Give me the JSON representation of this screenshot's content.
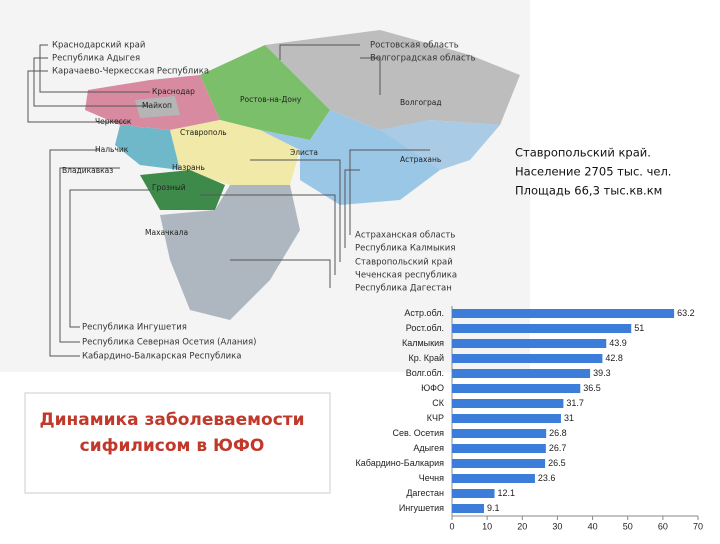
{
  "map": {
    "region_labels": [
      "Краснодарский край",
      "Республика Адыгея",
      "Карачаево-Черкесская Республика",
      "Ростовская область",
      "Волгоградская область",
      "Астраханская область",
      "Республика Калмыкия",
      "Ставропольский край",
      "Чеченская республика",
      "Республика Дагестан",
      "Республика Ингушетия",
      "Республика Северная Осетия (Алания)",
      "Кабардино-Балкарская Республика"
    ],
    "city_labels": [
      "Краснодар",
      "Майкоп",
      "Ростов-на-Дону",
      "Волгоград",
      "Черкесск",
      "Ставрополь",
      "Элиста",
      "Нальчик",
      "Назрань",
      "Астрахань",
      "Владикавказ",
      "Грозный",
      "Махачкала"
    ]
  },
  "info": [
    "Ставропольский край.",
    "Население 2705 тыс. чел.",
    "Площадь 66,3 тыс.кв.км"
  ],
  "heading": [
    "Динамика заболеваемости",
    "сифилисом в ЮФО"
  ],
  "chart_data": {
    "type": "bar",
    "orientation": "horizontal",
    "color": "#3b7dd8",
    "categories": [
      "Астр.обл.",
      "Рост.обл.",
      "Калмыкия",
      "Кр. Край",
      "Волг.обл.",
      "ЮФО",
      "СК",
      "КЧР",
      "Сев. Осетия",
      "Адыгея",
      "Кабардино-Балкария",
      "Чечня",
      "Дагестан",
      "Ингушетия"
    ],
    "values": [
      63.2,
      51,
      43.9,
      42.8,
      39.3,
      36.5,
      31.7,
      31,
      26.8,
      26.7,
      26.5,
      23.6,
      12.1,
      9.1
    ],
    "xlim": [
      0,
      70
    ],
    "xticks": [
      0,
      10,
      20,
      30,
      40,
      50,
      60,
      70
    ]
  }
}
